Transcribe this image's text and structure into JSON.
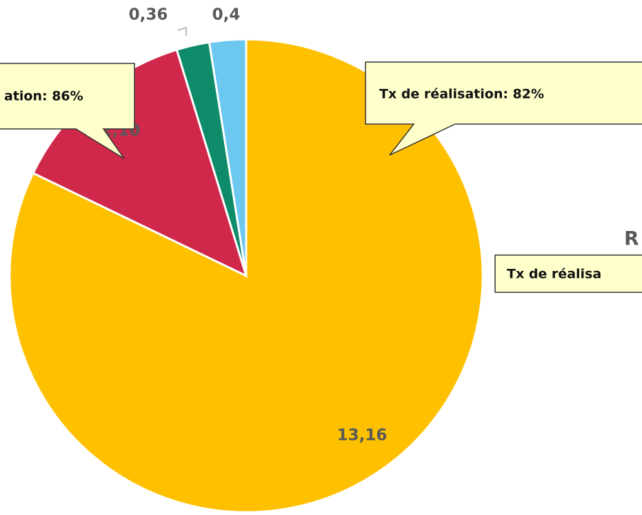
{
  "chart_data": {
    "type": "pie",
    "categories": [
      null,
      null,
      null,
      null
    ],
    "values": [
      13.16,
      2.1,
      0.36,
      0.4
    ],
    "value_labels": [
      "13,16",
      "2,10",
      "0,36",
      "0,4"
    ],
    "colors": [
      "#FFC000",
      "#D0284A",
      "#0E8C6A",
      "#6DC8F0"
    ],
    "annotations": [
      "ation: 86%",
      "Tx de réalisation: 82%",
      "Tx de réalisa",
      "R"
    ]
  }
}
